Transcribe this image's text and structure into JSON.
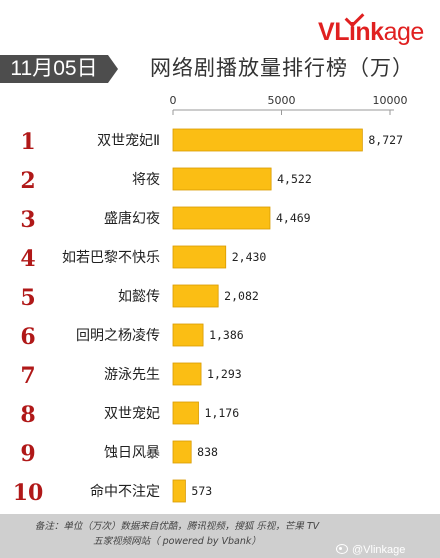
{
  "brand": {
    "logo_text_v": "V",
    "logo_text_rest": "Link",
    "logo_text_tail": "age"
  },
  "header": {
    "date": "11月05日",
    "title": "网络剧播放量排行榜（万）"
  },
  "footer": {
    "note_line1": "备注：单位（万次）数据来自优酷，腾讯视频，搜狐 乐视，芒果 TV",
    "note_line2": "五家视频网站（ powered by Vbank）",
    "watermark": "@Vlinkage"
  },
  "colors": {
    "bar": "#fbbe14",
    "bar_border": "#d99b00",
    "rank": "#b01818",
    "footer_bg": "#cfcfcf"
  },
  "chart_data": {
    "type": "bar",
    "orientation": "horizontal",
    "title": "网络剧播放量排行榜（万）",
    "xlim": [
      0,
      10000
    ],
    "x_ticks": [
      0,
      5000,
      10000
    ],
    "grid": false,
    "categories": [
      "双世宠妃Ⅱ",
      "将夜",
      "盛唐幻夜",
      "如若巴黎不快乐",
      "如懿传",
      "回明之杨凌传",
      "游泳先生",
      "双世宠妃",
      "蚀日风暴",
      "命中不注定"
    ],
    "ranks": [
      1,
      2,
      3,
      4,
      5,
      6,
      7,
      8,
      9,
      10
    ],
    "values": [
      8727,
      4522,
      4469,
      2430,
      2082,
      1386,
      1293,
      1176,
      838,
      573
    ],
    "value_labels": [
      "8,727",
      "4,522",
      "4,469",
      "2,430",
      "2,082",
      "1,386",
      "1,293",
      "1,176",
      "838",
      "573"
    ]
  }
}
